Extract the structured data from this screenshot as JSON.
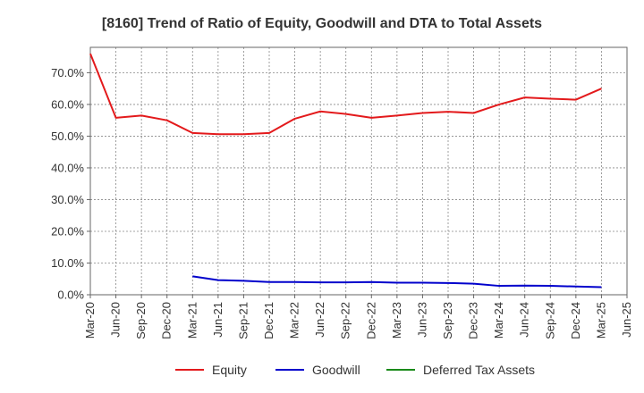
{
  "chart_data": {
    "type": "line",
    "title": "[8160]  Trend of Ratio of Equity, Goodwill and DTA to Total Assets",
    "xlabel": "",
    "ylabel": "",
    "categories": [
      "Mar-20",
      "Jun-20",
      "Sep-20",
      "Dec-20",
      "Mar-21",
      "Jun-21",
      "Sep-21",
      "Dec-21",
      "Mar-22",
      "Jun-22",
      "Sep-22",
      "Dec-22",
      "Mar-23",
      "Jun-23",
      "Sep-23",
      "Dec-23",
      "Mar-24",
      "Jun-24",
      "Sep-24",
      "Dec-24",
      "Mar-25",
      "Jun-25"
    ],
    "ylim": [
      0,
      78
    ],
    "yticks": [
      0,
      10,
      20,
      30,
      40,
      50,
      60,
      70
    ],
    "ytick_labels": [
      "0.0%",
      "10.0%",
      "20.0%",
      "30.0%",
      "40.0%",
      "50.0%",
      "60.0%",
      "70.0%"
    ],
    "grid": true,
    "legend_position": "bottom",
    "series": [
      {
        "name": "Equity",
        "color": "#e31a1c",
        "values": [
          76.0,
          55.8,
          56.5,
          55.0,
          51.0,
          50.6,
          50.6,
          51.0,
          55.5,
          57.8,
          57.0,
          55.8,
          56.5,
          57.3,
          57.7,
          57.3,
          60.0,
          62.2,
          61.8,
          61.5,
          65.0,
          null
        ]
      },
      {
        "name": "Goodwill",
        "color": "#0000cc",
        "values": [
          null,
          null,
          null,
          null,
          5.8,
          4.6,
          4.4,
          4.0,
          4.0,
          3.9,
          3.9,
          4.0,
          3.8,
          3.8,
          3.7,
          3.5,
          2.8,
          2.9,
          2.8,
          2.6,
          2.4,
          null
        ]
      },
      {
        "name": "Deferred Tax Assets",
        "color": "#1a8a1a",
        "values": [
          null,
          null,
          null,
          null,
          null,
          null,
          null,
          null,
          null,
          null,
          null,
          null,
          null,
          null,
          null,
          null,
          null,
          null,
          null,
          null,
          null,
          null
        ]
      }
    ]
  }
}
